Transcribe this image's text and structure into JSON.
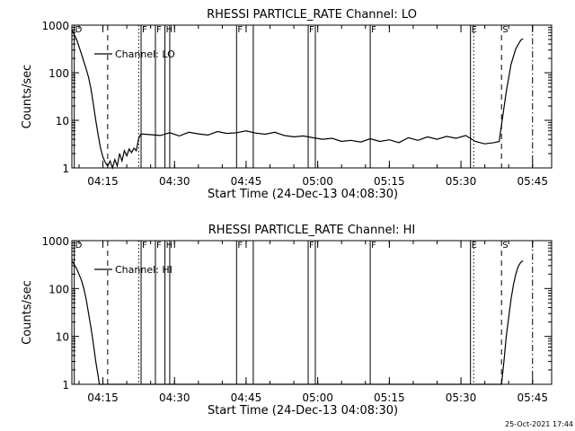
{
  "footer": {
    "timestamp": "25-Oct-2021 17:44"
  },
  "chart_data": [
    {
      "type": "line",
      "title": "RHESSI PARTICLE_RATE Channel: LO",
      "xlabel": "Start Time (24-Dec-13 04:08:30)",
      "ylabel": "Counts/sec",
      "yscale": "log",
      "ylim": [
        1,
        1000
      ],
      "xlim": [
        "04:08:30",
        "05:49:00"
      ],
      "grid": false,
      "legend_position": "top-left",
      "x_ticks": [
        "04:15",
        "04:30",
        "04:45",
        "05:00",
        "05:15",
        "05:30",
        "05:45"
      ],
      "y_ticks": [
        "1",
        "10",
        "100",
        "1000"
      ],
      "series": [
        {
          "name": "Channel: LO",
          "x": [
            "04:08:30",
            "04:09:30",
            "04:10:30",
            "04:11:30",
            "04:12:00",
            "04:12:30",
            "04:13:00",
            "04:13:30",
            "04:14:00",
            "04:14:30",
            "04:15:00",
            "04:15:30",
            "04:16:00",
            "04:16:30",
            "04:17:00",
            "04:17:30",
            "04:18:00",
            "04:18:30",
            "04:19:00",
            "04:19:30",
            "04:20:00",
            "04:20:30",
            "04:21:00",
            "04:21:30",
            "04:22:00",
            "04:22:30",
            "04:23:00",
            "04:25:00",
            "04:27:00",
            "04:29:00",
            "04:31:00",
            "04:33:00",
            "04:35:00",
            "04:37:00",
            "04:39:00",
            "04:41:00",
            "04:43:00",
            "04:45:00",
            "04:47:00",
            "04:49:00",
            "04:51:00",
            "04:53:00",
            "04:55:00",
            "04:57:00",
            "04:59:00",
            "05:01:00",
            "05:03:00",
            "05:05:00",
            "05:07:00",
            "05:09:00",
            "05:11:00",
            "05:13:00",
            "05:15:00",
            "05:17:00",
            "05:19:00",
            "05:21:00",
            "05:23:00",
            "05:25:00",
            "05:27:00",
            "05:29:00",
            "05:31:00",
            "05:33:00",
            "05:35:00",
            "05:37:00",
            "05:38:00",
            "05:38:30",
            "05:39:30",
            "05:40:30",
            "05:41:30",
            "05:42:30",
            "05:43:00"
          ],
          "y": [
            800,
            500,
            250,
            120,
            80,
            45,
            22,
            10,
            5,
            2.6,
            1.7,
            1.3,
            1.1,
            1.4,
            1.0,
            1.5,
            1.1,
            2.0,
            1.4,
            2.3,
            1.8,
            2.5,
            2.1,
            2.6,
            2.3,
            4.2,
            5.2,
            5.0,
            4.8,
            5.5,
            4.7,
            5.6,
            5.2,
            4.9,
            5.8,
            5.3,
            5.5,
            6.0,
            5.4,
            5.1,
            5.6,
            4.8,
            4.5,
            4.7,
            4.3,
            4.0,
            4.2,
            3.6,
            3.8,
            3.5,
            4.1,
            3.6,
            3.9,
            3.4,
            4.3,
            3.8,
            4.5,
            4.0,
            4.6,
            4.2,
            4.8,
            3.6,
            3.2,
            3.4,
            3.6,
            8,
            40,
            150,
            320,
            480,
            520
          ]
        }
      ],
      "vlines": [
        {
          "x": "04:09:00",
          "style": "solid",
          "label": "D"
        },
        {
          "x": "04:16:00",
          "style": "dashed",
          "label": ""
        },
        {
          "x": "04:22:30",
          "style": "dotted",
          "label": ""
        },
        {
          "x": "04:23:00",
          "style": "solid",
          "label": "F"
        },
        {
          "x": "04:26:00",
          "style": "solid",
          "label": "F"
        },
        {
          "x": "04:28:00",
          "style": "solid",
          "label": "H"
        },
        {
          "x": "04:29:00",
          "style": "solid",
          "label": ""
        },
        {
          "x": "04:43:00",
          "style": "solid",
          "label": "F"
        },
        {
          "x": "04:46:30",
          "style": "solid",
          "label": ""
        },
        {
          "x": "04:58:00",
          "style": "solid",
          "label": "F"
        },
        {
          "x": "04:59:30",
          "style": "solid",
          "label": ""
        },
        {
          "x": "05:11:00",
          "style": "solid",
          "label": "F"
        },
        {
          "x": "05:32:00",
          "style": "solid",
          "label": "E"
        },
        {
          "x": "05:32:40",
          "style": "dotted",
          "label": ""
        },
        {
          "x": "05:38:30",
          "style": "dashed",
          "label": "S"
        },
        {
          "x": "05:45:00",
          "style": "dashdot",
          "label": ""
        }
      ]
    },
    {
      "type": "line",
      "title": "RHESSI PARTICLE_RATE Channel: HI",
      "xlabel": "Start Time (24-Dec-13 04:08:30)",
      "ylabel": "Counts/sec",
      "yscale": "log",
      "ylim": [
        1,
        1000
      ],
      "xlim": [
        "04:08:30",
        "05:49:00"
      ],
      "grid": false,
      "legend_position": "top-left",
      "x_ticks": [
        "04:15",
        "04:30",
        "04:45",
        "05:00",
        "05:15",
        "05:30",
        "05:45"
      ],
      "y_ticks": [
        "1",
        "10",
        "100",
        "1000"
      ],
      "series": [
        {
          "name": "Channel: HI",
          "x": [
            "04:08:30",
            "04:09:30",
            "04:10:30",
            "04:11:00",
            "04:11:30",
            "04:12:00",
            "04:12:30",
            "04:13:00",
            "04:13:30",
            "04:14:00",
            "04:14:15",
            "05:38:30",
            "05:39:00",
            "05:39:30",
            "05:40:00",
            "05:40:30",
            "05:41:00",
            "05:41:30",
            "05:42:00",
            "05:42:30",
            "05:43:00"
          ],
          "y": [
            380,
            260,
            150,
            100,
            60,
            30,
            15,
            7,
            3,
            1.5,
            1.0,
            1.0,
            3,
            10,
            25,
            60,
            120,
            200,
            290,
            350,
            380
          ]
        }
      ],
      "vlines": [
        {
          "x": "04:09:00",
          "style": "solid",
          "label": "D"
        },
        {
          "x": "04:16:00",
          "style": "dashed",
          "label": ""
        },
        {
          "x": "04:22:30",
          "style": "dotted",
          "label": ""
        },
        {
          "x": "04:23:00",
          "style": "solid",
          "label": "F"
        },
        {
          "x": "04:26:00",
          "style": "solid",
          "label": "F"
        },
        {
          "x": "04:28:00",
          "style": "solid",
          "label": "H"
        },
        {
          "x": "04:29:00",
          "style": "solid",
          "label": ""
        },
        {
          "x": "04:43:00",
          "style": "solid",
          "label": "F"
        },
        {
          "x": "04:46:30",
          "style": "solid",
          "label": ""
        },
        {
          "x": "04:58:00",
          "style": "solid",
          "label": "F"
        },
        {
          "x": "04:59:30",
          "style": "solid",
          "label": ""
        },
        {
          "x": "05:11:00",
          "style": "solid",
          "label": "F"
        },
        {
          "x": "05:32:00",
          "style": "solid",
          "label": "E"
        },
        {
          "x": "05:32:40",
          "style": "dotted",
          "label": ""
        },
        {
          "x": "05:38:30",
          "style": "dashed",
          "label": "S"
        },
        {
          "x": "05:45:00",
          "style": "dashdot",
          "label": ""
        }
      ]
    }
  ]
}
